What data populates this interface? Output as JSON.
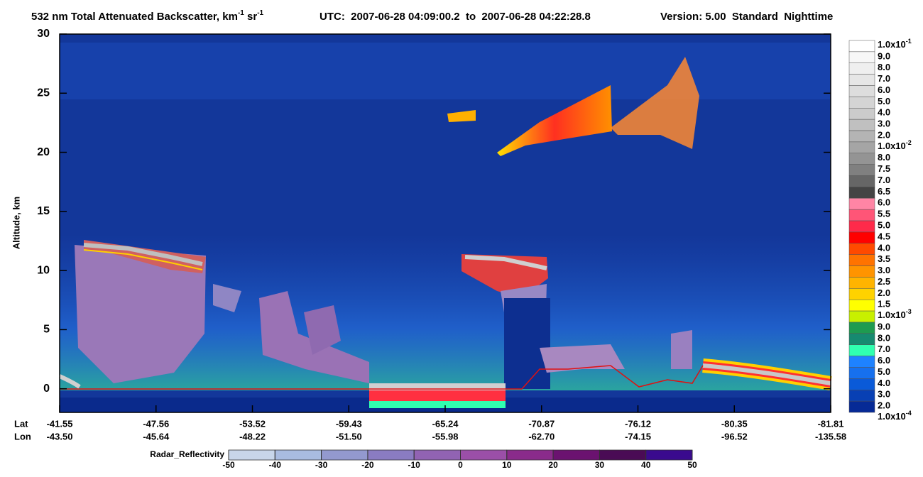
{
  "chart_data": {
    "type": "heatmap",
    "title_parts": [
      "532 nm Total Attenuated Backscatter, km",
      "-1",
      " sr",
      "-1"
    ],
    "time_range": "UTC:  2007-06-28 04:09:00.2  to  2007-06-28 04:22:28.8",
    "version": "Version: 5.00  Standard  Nighttime",
    "ylabel": "Altitude, km",
    "ylim": [
      -2,
      30
    ],
    "yticks": [
      0,
      5,
      10,
      15,
      20,
      25,
      30
    ],
    "x_rows": [
      {
        "name": "Lat",
        "labels": [
          "-41.55",
          "-47.56",
          "-53.52",
          "-59.43",
          "-65.24",
          "-70.87",
          "-76.12",
          "-80.35",
          "-81.81"
        ]
      },
      {
        "name": "Lon",
        "labels": [
          "-43.50",
          "-45.64",
          "-48.22",
          "-51.50",
          "-55.98",
          "-62.70",
          "-74.15",
          "-96.52",
          "-135.58"
        ]
      }
    ],
    "colorbar": {
      "labels": [
        {
          "base": "1.0x10",
          "sup": "-1"
        },
        "9.0",
        "8.0",
        "7.0",
        "6.0",
        "5.0",
        "4.0",
        "3.0",
        "2.0",
        {
          "base": "1.0x10",
          "sup": "-2"
        },
        "8.0",
        "7.5",
        "7.0",
        "6.5",
        "6.0",
        "5.5",
        "5.0",
        "4.5",
        "4.0",
        "3.5",
        "3.0",
        "2.5",
        "2.0",
        "1.5",
        {
          "base": "1.0x10",
          "sup": "-3"
        },
        "9.0",
        "8.0",
        "7.0",
        "6.0",
        "5.0",
        "4.0",
        "3.0",
        "2.0",
        {
          "base": "1.0x10",
          "sup": "-4"
        }
      ],
      "colors": [
        "#ffffff",
        "#f7f7f7",
        "#efefef",
        "#e6e6e6",
        "#dddddd",
        "#d4d4d4",
        "#cbcbcb",
        "#c0c0c0",
        "#b4b4b4",
        "#a5a5a5",
        "#949494",
        "#808080",
        "#666666",
        "#444444",
        "#ff85a5",
        "#ff5577",
        "#ff2a4a",
        "#ff0000",
        "#ff4a00",
        "#ff7300",
        "#ff9400",
        "#ffb400",
        "#ffd200",
        "#ffff00",
        "#c8f000",
        "#1e9b50",
        "#168a70",
        "#30ffb0",
        "#1e82ff",
        "#1670ee",
        "#0a5ad8",
        "#0840b4",
        "#062a96"
      ]
    },
    "radar_colorbar": {
      "label": "Radar_Reflectivity",
      "xlim": [
        -50,
        50
      ],
      "ticks": [
        -50,
        -40,
        -30,
        -20,
        -10,
        0,
        10,
        20,
        30,
        40,
        50
      ],
      "colors": [
        "#c8d6ea",
        "#a9bce0",
        "#9399cf",
        "#8a7cc2",
        "#9163b3",
        "#9b4fa8",
        "#8a2b8b",
        "#6b1270",
        "#4a0b55",
        "#3a0a8e"
      ]
    }
  }
}
